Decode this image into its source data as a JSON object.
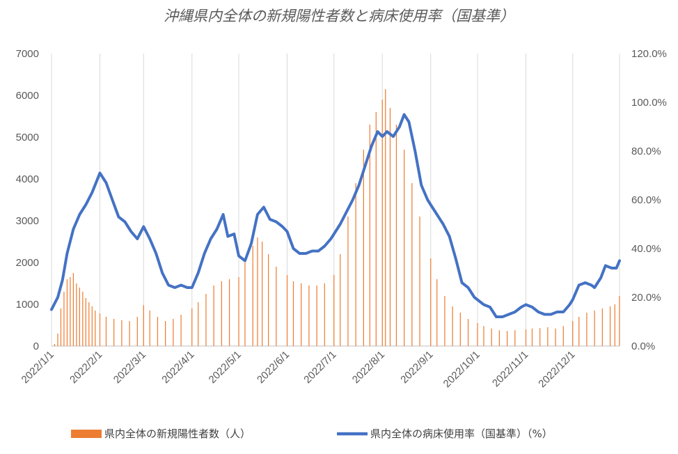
{
  "chart_data": {
    "type": "bar+line",
    "title": "沖縄県内全体の新規陽性者数と病床使用率（国基準）",
    "left_axis": {
      "min": 0,
      "max": 7000,
      "step": 1000,
      "ticks": [
        "0",
        "1000",
        "2000",
        "3000",
        "4000",
        "5000",
        "6000",
        "7000"
      ]
    },
    "right_axis": {
      "min": 0,
      "max": 120,
      "step": 20,
      "ticks": [
        "0.0%",
        "20.0%",
        "40.0%",
        "60.0%",
        "80.0%",
        "100.0%",
        "120.0%"
      ]
    },
    "x_axis": {
      "start": "2022-01-01",
      "end": "2022-12-31",
      "tick_labels": [
        "2022/1/1",
        "2022/2/1",
        "2022/3/1",
        "2022/4/1",
        "2022/5/1",
        "2022/6/1",
        "2022/7/1",
        "2022/8/1",
        "2022/9/1",
        "2022/10/1",
        "2022/11/1",
        "2022/12/1"
      ]
    },
    "grid": "vertical",
    "legend_position": "bottom",
    "series": [
      {
        "name": "県内全体の新規陽性者数（人）",
        "type": "bar",
        "color": "#ED7D31",
        "axis": "left",
        "points": [
          [
            "2022-01-03",
            50
          ],
          [
            "2022-01-05",
            300
          ],
          [
            "2022-01-07",
            900
          ],
          [
            "2022-01-09",
            1300
          ],
          [
            "2022-01-11",
            1600
          ],
          [
            "2022-01-13",
            1650
          ],
          [
            "2022-01-15",
            1750
          ],
          [
            "2022-01-17",
            1500
          ],
          [
            "2022-01-19",
            1400
          ],
          [
            "2022-01-21",
            1300
          ],
          [
            "2022-01-23",
            1150
          ],
          [
            "2022-01-25",
            1050
          ],
          [
            "2022-01-27",
            950
          ],
          [
            "2022-01-29",
            850
          ],
          [
            "2022-02-01",
            780
          ],
          [
            "2022-02-05",
            700
          ],
          [
            "2022-02-10",
            650
          ],
          [
            "2022-02-15",
            620
          ],
          [
            "2022-02-20",
            600
          ],
          [
            "2022-02-25",
            700
          ],
          [
            "2022-03-01",
            980
          ],
          [
            "2022-03-05",
            850
          ],
          [
            "2022-03-10",
            700
          ],
          [
            "2022-03-15",
            600
          ],
          [
            "2022-03-20",
            650
          ],
          [
            "2022-03-25",
            750
          ],
          [
            "2022-04-01",
            900
          ],
          [
            "2022-04-05",
            1050
          ],
          [
            "2022-04-10",
            1250
          ],
          [
            "2022-04-15",
            1450
          ],
          [
            "2022-04-20",
            1550
          ],
          [
            "2022-04-25",
            1600
          ],
          [
            "2022-05-01",
            1650
          ],
          [
            "2022-05-05",
            2000
          ],
          [
            "2022-05-10",
            2400
          ],
          [
            "2022-05-13",
            2600
          ],
          [
            "2022-05-16",
            2500
          ],
          [
            "2022-05-20",
            2200
          ],
          [
            "2022-05-25",
            1900
          ],
          [
            "2022-06-01",
            1700
          ],
          [
            "2022-06-05",
            1550
          ],
          [
            "2022-06-10",
            1500
          ],
          [
            "2022-06-15",
            1450
          ],
          [
            "2022-06-20",
            1450
          ],
          [
            "2022-06-25",
            1500
          ],
          [
            "2022-07-01",
            1700
          ],
          [
            "2022-07-05",
            2200
          ],
          [
            "2022-07-10",
            3100
          ],
          [
            "2022-07-15",
            3900
          ],
          [
            "2022-07-20",
            4700
          ],
          [
            "2022-07-24",
            5300
          ],
          [
            "2022-07-28",
            5600
          ],
          [
            "2022-08-01",
            5900
          ],
          [
            "2022-08-03",
            6150
          ],
          [
            "2022-08-06",
            5700
          ],
          [
            "2022-08-10",
            5300
          ],
          [
            "2022-08-15",
            4700
          ],
          [
            "2022-08-20",
            3900
          ],
          [
            "2022-08-25",
            3100
          ],
          [
            "2022-09-01",
            2100
          ],
          [
            "2022-09-05",
            1600
          ],
          [
            "2022-09-10",
            1200
          ],
          [
            "2022-09-15",
            950
          ],
          [
            "2022-09-20",
            800
          ],
          [
            "2022-09-25",
            650
          ],
          [
            "2022-10-01",
            550
          ],
          [
            "2022-10-05",
            480
          ],
          [
            "2022-10-10",
            420
          ],
          [
            "2022-10-15",
            380
          ],
          [
            "2022-10-20",
            360
          ],
          [
            "2022-10-25",
            380
          ],
          [
            "2022-11-01",
            400
          ],
          [
            "2022-11-05",
            420
          ],
          [
            "2022-11-10",
            430
          ],
          [
            "2022-11-15",
            450
          ],
          [
            "2022-11-20",
            420
          ],
          [
            "2022-11-25",
            480
          ],
          [
            "2022-12-01",
            600
          ],
          [
            "2022-12-05",
            700
          ],
          [
            "2022-12-10",
            800
          ],
          [
            "2022-12-15",
            850
          ],
          [
            "2022-12-20",
            900
          ],
          [
            "2022-12-25",
            950
          ],
          [
            "2022-12-28",
            1000
          ],
          [
            "2022-12-31",
            1200
          ]
        ]
      },
      {
        "name": "県内全体の病床使用率（国基準）（%）",
        "type": "line",
        "color": "#4472C4",
        "axis": "right",
        "points": [
          [
            "2022-01-01",
            15
          ],
          [
            "2022-01-05",
            20
          ],
          [
            "2022-01-08",
            27
          ],
          [
            "2022-01-11",
            38
          ],
          [
            "2022-01-15",
            48
          ],
          [
            "2022-01-19",
            54
          ],
          [
            "2022-01-23",
            58
          ],
          [
            "2022-01-27",
            63
          ],
          [
            "2022-02-01",
            71
          ],
          [
            "2022-02-05",
            67
          ],
          [
            "2022-02-09",
            60
          ],
          [
            "2022-02-13",
            53
          ],
          [
            "2022-02-17",
            51
          ],
          [
            "2022-02-21",
            47
          ],
          [
            "2022-02-25",
            44
          ],
          [
            "2022-03-01",
            49
          ],
          [
            "2022-03-05",
            44
          ],
          [
            "2022-03-09",
            38
          ],
          [
            "2022-03-13",
            30
          ],
          [
            "2022-03-17",
            25
          ],
          [
            "2022-03-21",
            24
          ],
          [
            "2022-03-25",
            25
          ],
          [
            "2022-03-29",
            24
          ],
          [
            "2022-04-01",
            24
          ],
          [
            "2022-04-05",
            30
          ],
          [
            "2022-04-09",
            38
          ],
          [
            "2022-04-13",
            44
          ],
          [
            "2022-04-17",
            48
          ],
          [
            "2022-04-21",
            54
          ],
          [
            "2022-04-24",
            45
          ],
          [
            "2022-04-28",
            46
          ],
          [
            "2022-05-01",
            37
          ],
          [
            "2022-05-05",
            35
          ],
          [
            "2022-05-09",
            42
          ],
          [
            "2022-05-13",
            54
          ],
          [
            "2022-05-17",
            57
          ],
          [
            "2022-05-21",
            52
          ],
          [
            "2022-05-25",
            51
          ],
          [
            "2022-05-29",
            49
          ],
          [
            "2022-06-01",
            47
          ],
          [
            "2022-06-05",
            40
          ],
          [
            "2022-06-09",
            38
          ],
          [
            "2022-06-13",
            38
          ],
          [
            "2022-06-17",
            39
          ],
          [
            "2022-06-21",
            39
          ],
          [
            "2022-06-25",
            41
          ],
          [
            "2022-06-29",
            44
          ],
          [
            "2022-07-01",
            46
          ],
          [
            "2022-07-05",
            50
          ],
          [
            "2022-07-09",
            55
          ],
          [
            "2022-07-13",
            60
          ],
          [
            "2022-07-17",
            66
          ],
          [
            "2022-07-21",
            74
          ],
          [
            "2022-07-25",
            82
          ],
          [
            "2022-07-29",
            88
          ],
          [
            "2022-08-01",
            86
          ],
          [
            "2022-08-04",
            88
          ],
          [
            "2022-08-08",
            86
          ],
          [
            "2022-08-12",
            90
          ],
          [
            "2022-08-15",
            95
          ],
          [
            "2022-08-18",
            92
          ],
          [
            "2022-08-22",
            80
          ],
          [
            "2022-08-26",
            66
          ],
          [
            "2022-08-30",
            60
          ],
          [
            "2022-09-01",
            58
          ],
          [
            "2022-09-05",
            54
          ],
          [
            "2022-09-09",
            50
          ],
          [
            "2022-09-13",
            45
          ],
          [
            "2022-09-17",
            36
          ],
          [
            "2022-09-21",
            26
          ],
          [
            "2022-09-25",
            24
          ],
          [
            "2022-09-29",
            20
          ],
          [
            "2022-10-01",
            19
          ],
          [
            "2022-10-05",
            17
          ],
          [
            "2022-10-09",
            16
          ],
          [
            "2022-10-13",
            12
          ],
          [
            "2022-10-17",
            12
          ],
          [
            "2022-10-21",
            13
          ],
          [
            "2022-10-25",
            14
          ],
          [
            "2022-10-29",
            16
          ],
          [
            "2022-11-01",
            17
          ],
          [
            "2022-11-05",
            16
          ],
          [
            "2022-11-09",
            14
          ],
          [
            "2022-11-13",
            13
          ],
          [
            "2022-11-17",
            13
          ],
          [
            "2022-11-21",
            14
          ],
          [
            "2022-11-25",
            14
          ],
          [
            "2022-11-29",
            17
          ],
          [
            "2022-12-01",
            19
          ],
          [
            "2022-12-05",
            25
          ],
          [
            "2022-12-09",
            26
          ],
          [
            "2022-12-13",
            25
          ],
          [
            "2022-12-15",
            24
          ],
          [
            "2022-12-19",
            28
          ],
          [
            "2022-12-22",
            33
          ],
          [
            "2022-12-26",
            32
          ],
          [
            "2022-12-29",
            32
          ],
          [
            "2022-12-31",
            35
          ]
        ]
      }
    ]
  }
}
